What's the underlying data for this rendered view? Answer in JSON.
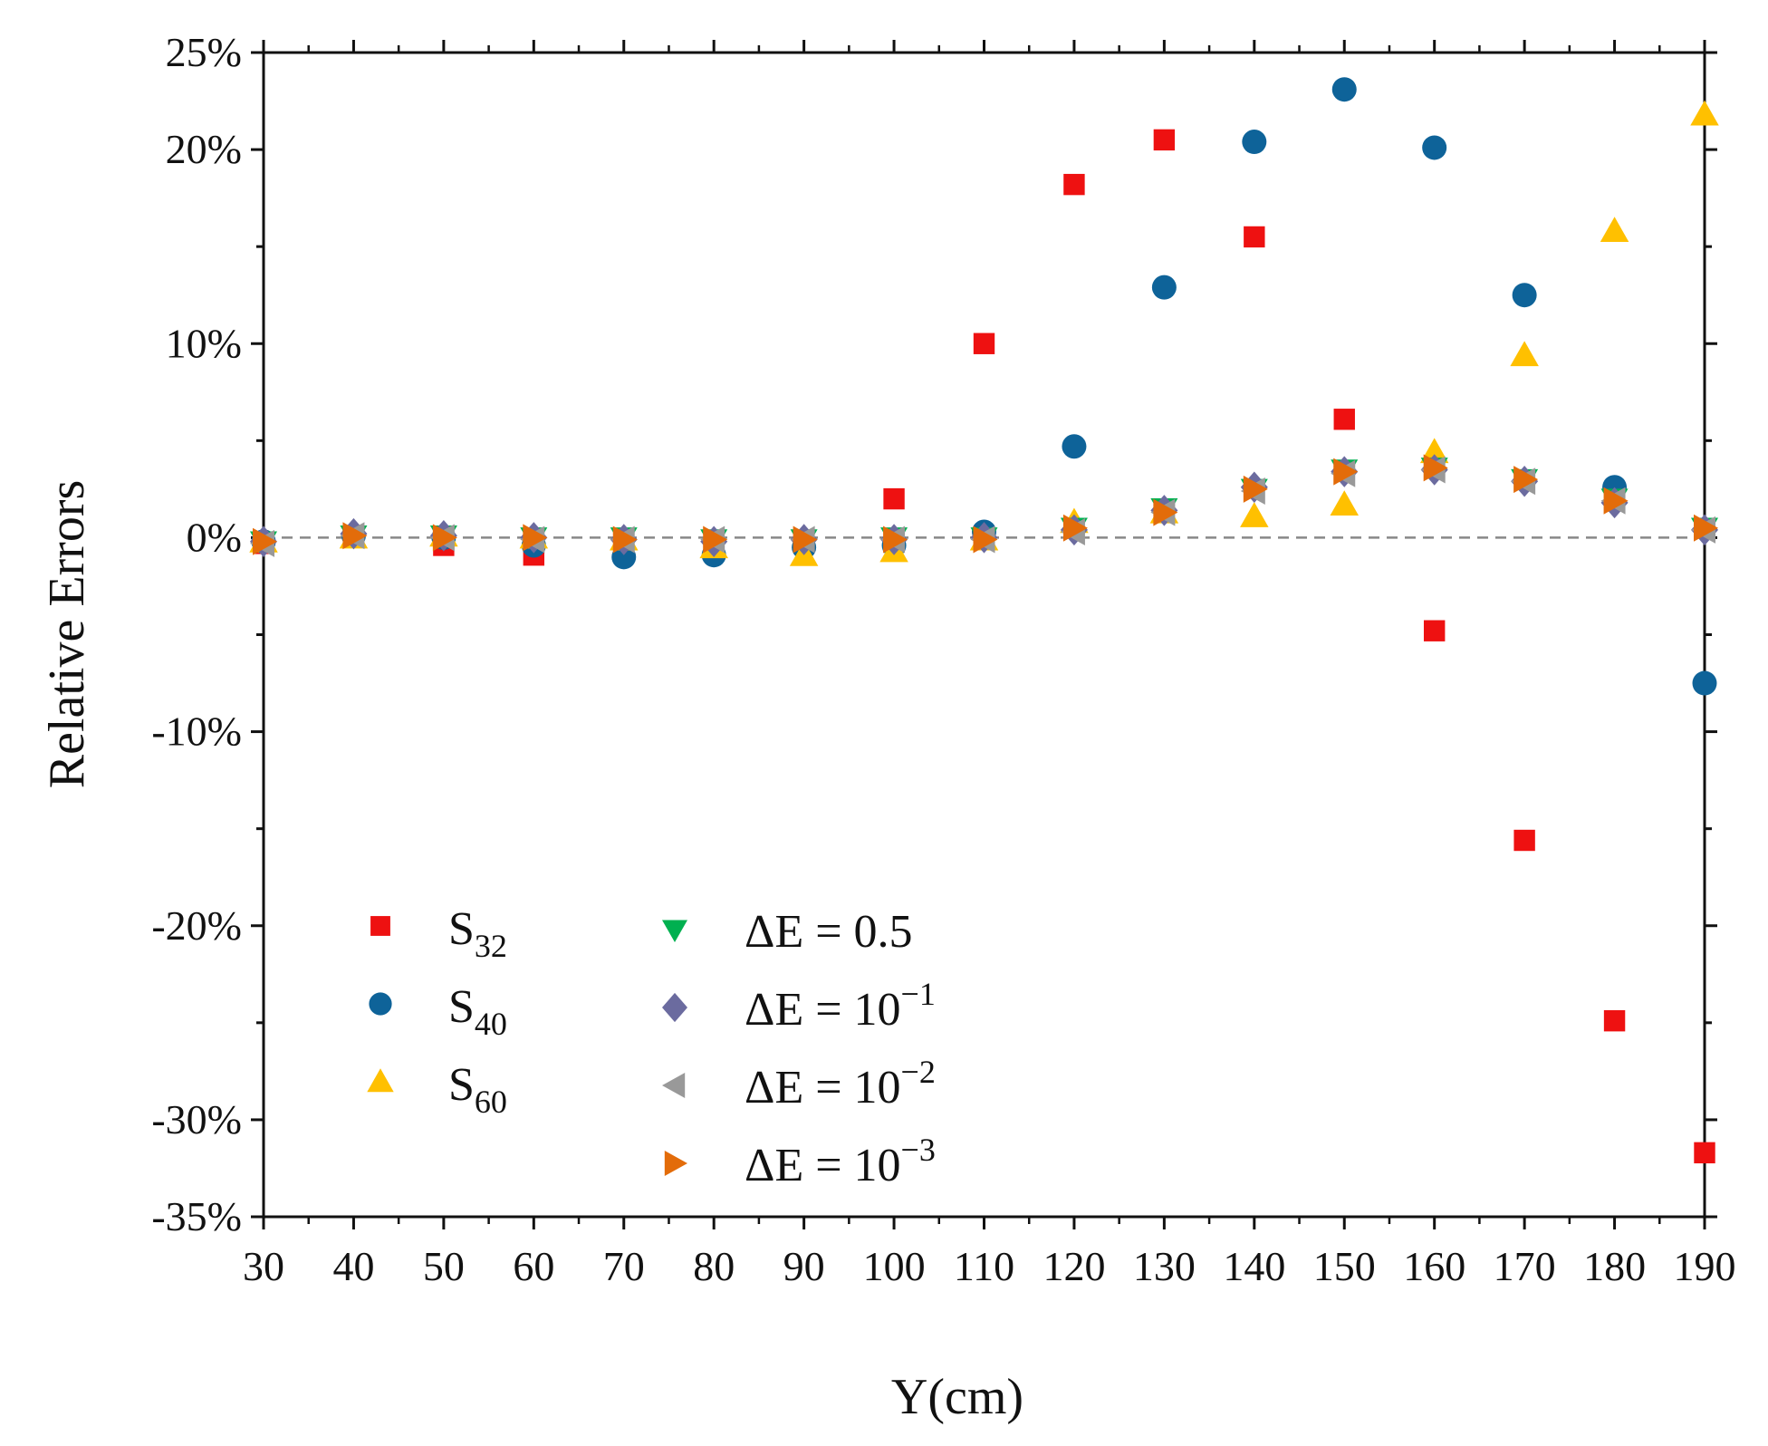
{
  "chart_data": {
    "type": "scatter",
    "xlabel": "Y(cm)",
    "ylabel": "Relative Errors",
    "xlim": [
      30,
      190
    ],
    "ylim": [
      -35,
      25
    ],
    "x_ticks": [
      30,
      40,
      50,
      60,
      70,
      80,
      90,
      100,
      110,
      120,
      130,
      140,
      150,
      160,
      170,
      180,
      190
    ],
    "y_ticks": [
      25,
      20,
      10,
      0,
      -10,
      -20,
      -30,
      -35
    ],
    "y_tick_labels": [
      "25%",
      "20%",
      "10%",
      "0%",
      "-10%",
      "-20%",
      "-30%",
      "-35%"
    ],
    "reference_line": {
      "y": 0,
      "style": "dashed",
      "color": "#888888"
    },
    "legend_location": "lower-left",
    "series": [
      {
        "name": "S32",
        "label_main": "S",
        "label_sub": "32",
        "marker": "square",
        "color": "#ee1111",
        "x": [
          30,
          40,
          50,
          60,
          70,
          80,
          90,
          100,
          110,
          120,
          130,
          140,
          150,
          160,
          170,
          180,
          190
        ],
        "y": [
          -0.3,
          0.1,
          -0.4,
          -0.9,
          -0.2,
          -0.3,
          -0.2,
          2.0,
          10.0,
          18.2,
          20.5,
          15.5,
          6.1,
          -4.8,
          -15.6,
          -24.9,
          -31.7
        ]
      },
      {
        "name": "S40",
        "label_main": "S",
        "label_sub": "40",
        "marker": "circle",
        "color": "#0e6399",
        "x": [
          30,
          40,
          50,
          60,
          70,
          80,
          90,
          100,
          110,
          120,
          130,
          140,
          150,
          160,
          170,
          180,
          190
        ],
        "y": [
          -0.2,
          0.1,
          0.0,
          -0.4,
          -1.0,
          -0.9,
          -0.5,
          -0.4,
          0.3,
          4.7,
          12.9,
          20.4,
          23.1,
          20.1,
          12.5,
          2.6,
          -7.5
        ]
      },
      {
        "name": "S60",
        "label_main": "S",
        "label_sub": "60",
        "marker": "triangle-up",
        "color": "#ffc000",
        "x": [
          30,
          40,
          50,
          60,
          70,
          80,
          90,
          100,
          110,
          120,
          130,
          140,
          150,
          160,
          170,
          180,
          190
        ],
        "y": [
          -0.2,
          0.0,
          0.1,
          0.0,
          -0.1,
          -0.5,
          -0.9,
          -0.7,
          -0.1,
          0.8,
          1.3,
          1.1,
          1.7,
          4.4,
          9.4,
          15.8,
          21.8
        ]
      },
      {
        "name": "ΔE = 0.5",
        "label_main": "ΔE = 0.5",
        "marker": "triangle-down",
        "color": "#00b050",
        "x": [
          30,
          40,
          50,
          60,
          70,
          80,
          90,
          100,
          110,
          120,
          130,
          140,
          150,
          160,
          170,
          180,
          190
        ],
        "y": [
          -0.2,
          0.1,
          0.1,
          0.0,
          0.0,
          -0.1,
          -0.1,
          0.0,
          0.0,
          0.5,
          1.5,
          2.5,
          3.5,
          3.6,
          3.0,
          2.0,
          0.5
        ]
      },
      {
        "name": "ΔE = 10^-1",
        "label_main": "ΔE = 10",
        "label_sup": "−1",
        "marker": "diamond",
        "color": "#6b6b9f",
        "x": [
          30,
          40,
          50,
          60,
          70,
          80,
          90,
          100,
          110,
          120,
          130,
          140,
          150,
          160,
          170,
          180,
          190
        ],
        "y": [
          -0.2,
          0.2,
          0.1,
          0.0,
          -0.1,
          -0.2,
          -0.1,
          -0.1,
          0.0,
          0.4,
          1.4,
          2.6,
          3.4,
          3.5,
          2.9,
          1.8,
          0.4
        ]
      },
      {
        "name": "ΔE = 10^-2",
        "label_main": "ΔE = 10",
        "label_sup": "−2",
        "marker": "triangle-left",
        "color": "#999999",
        "x": [
          30,
          40,
          50,
          60,
          70,
          80,
          90,
          100,
          110,
          120,
          130,
          140,
          150,
          160,
          170,
          180,
          190
        ],
        "y": [
          -0.3,
          0.1,
          0.0,
          -0.1,
          -0.1,
          -0.1,
          -0.1,
          -0.1,
          -0.1,
          0.3,
          1.3,
          2.4,
          3.3,
          3.5,
          2.9,
          1.9,
          0.4
        ]
      },
      {
        "name": "ΔE = 10^-3",
        "label_main": "ΔE = 10",
        "label_sup": "−3",
        "marker": "triangle-right",
        "color": "#e36c0a",
        "x": [
          30,
          40,
          50,
          60,
          70,
          80,
          90,
          100,
          110,
          120,
          130,
          140,
          150,
          160,
          170,
          180,
          190
        ],
        "y": [
          -0.2,
          0.1,
          0.0,
          0.0,
          -0.1,
          -0.1,
          -0.1,
          -0.1,
          -0.1,
          0.5,
          1.3,
          2.5,
          3.4,
          3.6,
          3.0,
          1.9,
          0.5
        ]
      }
    ]
  }
}
